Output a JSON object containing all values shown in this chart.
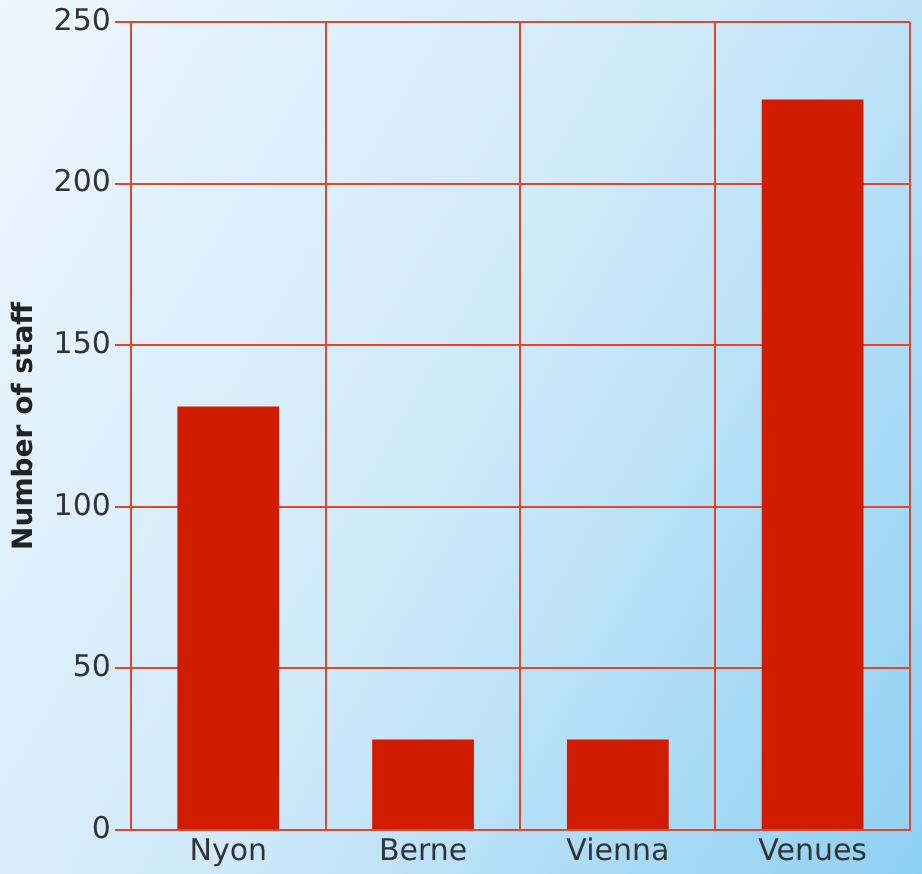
{
  "chart_data": {
    "type": "bar",
    "ylabel": "Number of staff",
    "categories": [
      "Nyon",
      "Berne",
      "Vienna",
      "Venues"
    ],
    "values": [
      131,
      28,
      28,
      226
    ],
    "color": "#d01c00",
    "ylim": [
      0,
      250
    ],
    "yticks": [
      0,
      50,
      100,
      150,
      200,
      250
    ],
    "grid": true
  }
}
